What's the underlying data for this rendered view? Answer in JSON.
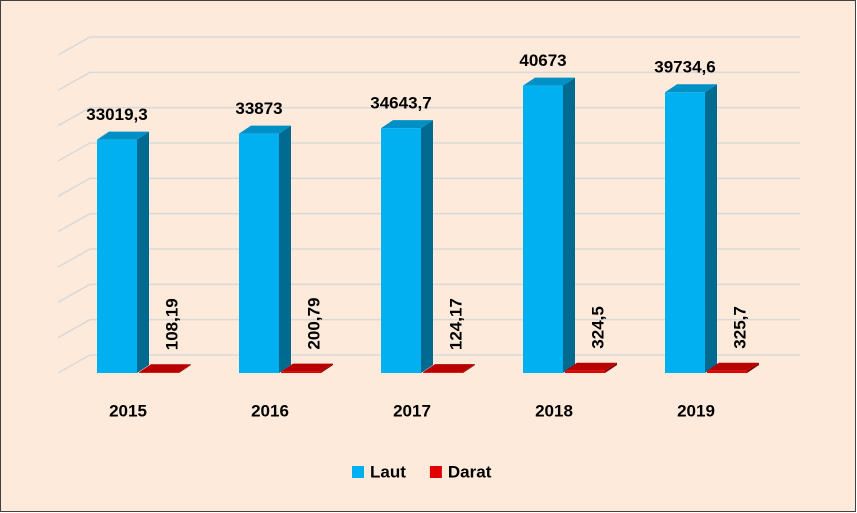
{
  "chart_data": {
    "type": "bar3d",
    "categories": [
      "2015",
      "2016",
      "2017",
      "2018",
      "2019"
    ],
    "series": [
      {
        "name": "Laut",
        "color": "#00b0f0",
        "values": [
          33019.3,
          33873,
          34643.7,
          40673,
          39734.6
        ],
        "value_labels": [
          "33019,3",
          "33873",
          "34643,7",
          "40673",
          "39734,6"
        ]
      },
      {
        "name": "Darat",
        "color": "#e00000",
        "values": [
          108.19,
          200.79,
          124.17,
          324.5,
          325.7
        ],
        "value_labels": [
          "108,19",
          "200,79",
          "124,17",
          "324,5",
          "325,7"
        ]
      }
    ],
    "ylim": [
      0,
      45000
    ],
    "yticks": [
      0,
      5000,
      10000,
      15000,
      20000,
      25000,
      30000,
      35000,
      40000,
      45000
    ],
    "grid": true,
    "legend": "bottom"
  }
}
